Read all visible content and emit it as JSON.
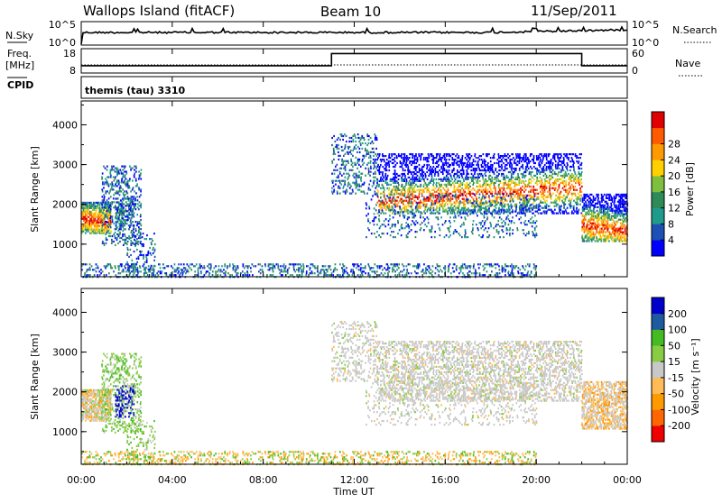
{
  "header": {
    "station": "Wallops Island (fitACF)",
    "beam": "Beam 10",
    "date": "11/Sep/2011"
  },
  "panels": {
    "nsky_label": "N.Sky",
    "nsky_ticks": [
      "10^5",
      "10^0"
    ],
    "nsearch_label": "N.Search",
    "nsearch_ticks": [
      "10^5",
      "10^0"
    ],
    "freq_label": "Freq.",
    "freq_unit": "[MHz]",
    "freq_ticks": [
      "18",
      "8"
    ],
    "nave_label": "Nave",
    "nave_ticks": [
      "60",
      "0"
    ],
    "cpid_label": "CPID",
    "cpid_value": "themis (tau) 3310"
  },
  "colors": {
    "power": [
      "#0000ff",
      "#1c50b4",
      "#1e9b8a",
      "#2e8b57",
      "#7fbf3f",
      "#ffd000",
      "#ff9900",
      "#ff5a00",
      "#e00000"
    ],
    "velocity": [
      "#ee0000",
      "#ff6600",
      "#ff9900",
      "#ffbb55",
      "#c8c8c8",
      "#88cc44",
      "#44bb22",
      "#1e5aa0",
      "#0000cc"
    ]
  },
  "chart_data": [
    {
      "type": "heatmap",
      "title": "Power",
      "ylabel": "Slant Range [km]",
      "yticks": [
        "1000",
        "2000",
        "3000",
        "4000"
      ],
      "ylim": [
        180,
        4600
      ],
      "colorbar_label": "Power [dB]",
      "colorbar_ticks": [
        "4",
        "8",
        "12",
        "16",
        "20",
        "24",
        "28"
      ],
      "colorbar_range": [
        0,
        32
      ]
    },
    {
      "type": "heatmap",
      "title": "Velocity",
      "ylabel": "Slant Range [km]",
      "yticks": [
        "1000",
        "2000",
        "3000",
        "4000"
      ],
      "ylim": [
        180,
        4600
      ],
      "colorbar_label": "Velocity [m s⁻¹]",
      "colorbar_ticks": [
        "200",
        "100",
        "50",
        "15",
        "-15",
        "-50",
        "-100",
        "-200"
      ]
    }
  ],
  "time_axis": {
    "label": "Time UT",
    "ticks": [
      "00:00",
      "04:00",
      "08:00",
      "12:00",
      "16:00",
      "20:00",
      "00:00"
    ],
    "hours": [
      0,
      4,
      8,
      12,
      16,
      20,
      24
    ]
  },
  "series": {
    "freq_mhz": [
      {
        "t0": 0,
        "t1": 11,
        "v": 11
      },
      {
        "t0": 11,
        "t1": 22,
        "v": 16
      },
      {
        "t0": 22,
        "t1": 24,
        "v": 11
      }
    ],
    "nave": [
      {
        "t0": 0,
        "t1": 24,
        "v": 20
      }
    ]
  },
  "scatter_regions": [
    {
      "t": [
        0,
        1.3
      ],
      "r": [
        1300,
        2100
      ],
      "core": 1650,
      "coreSlope": -50,
      "density": 0.9,
      "vel": "mix1"
    },
    {
      "t": [
        0.9,
        2.6
      ],
      "r": [
        1000,
        3000
      ],
      "core": 0,
      "coreSlope": 0,
      "density": 0.35,
      "vel": "green"
    },
    {
      "t": [
        1.5,
        2.3
      ],
      "r": [
        1400,
        2200
      ],
      "core": 0,
      "coreSlope": 0,
      "density": 0.5,
      "vel": "blue"
    },
    {
      "t": [
        2.0,
        3.2
      ],
      "r": [
        300,
        1300
      ],
      "core": 0,
      "coreSlope": 0,
      "density": 0.25,
      "vel": "green"
    },
    {
      "t": [
        0,
        20.0
      ],
      "r": [
        200,
        550
      ],
      "core": 0,
      "coreSlope": 0,
      "density": 0.35,
      "vel": "mixground"
    },
    {
      "t": [
        11.0,
        13.0
      ],
      "r": [
        2300,
        3800
      ],
      "core": 0,
      "coreSlope": 0,
      "density": 0.3,
      "vel": "gray"
    },
    {
      "t": [
        13.0,
        22.0
      ],
      "r": [
        1800,
        3300
      ],
      "core": 2100,
      "coreSlope": 40,
      "density": 0.5,
      "vel": "gray"
    },
    {
      "t": [
        12.5,
        20.0
      ],
      "r": [
        1200,
        2300
      ],
      "core": 0,
      "coreSlope": 0,
      "density": 0.18,
      "vel": "gray"
    },
    {
      "t": [
        22.0,
        24.0
      ],
      "r": [
        1100,
        2300
      ],
      "core": 1500,
      "coreSlope": -80,
      "density": 0.75,
      "vel": "mix2"
    }
  ]
}
